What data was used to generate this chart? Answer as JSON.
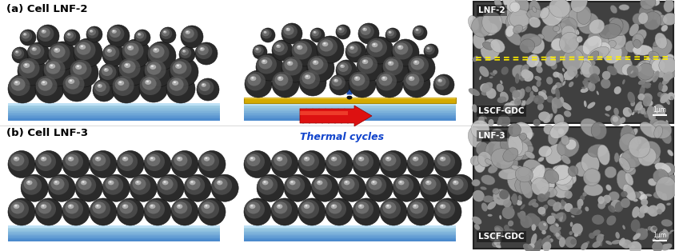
{
  "title_a": "(a) Cell LNF-2",
  "title_b": "(b) Cell LNF-3",
  "thermal_label": "Thermal cycles",
  "sem_label_lnf2_top": "LNF-2",
  "sem_label_lnf2_bot": "LSCF-GDC",
  "sem_label_lnf3_top": "LNF-3",
  "sem_label_lnf3_bot": "LSCF-GDC",
  "scale_bar": "1μm",
  "bg_color": "#ffffff",
  "sphere_dark": "#1c1c1c",
  "sphere_mid": "#555555",
  "sphere_light": "#aaaaaa",
  "sphere_spec": "#dddddd",
  "substrate_light": "#b8d8f8",
  "substrate_dark": "#4488cc",
  "arrow_red": "#dd1111",
  "arrow_red_light": "#ff6644",
  "thermal_text_color": "#1144cc",
  "gold_color": "#d4aa00",
  "blue_arrow_color": "#2255bb",
  "dashed_color": "#ffee00"
}
